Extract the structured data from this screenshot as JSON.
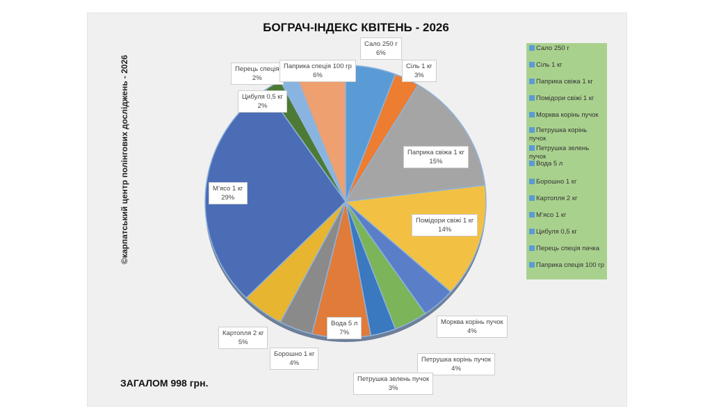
{
  "chart_data": {
    "type": "pie",
    "title": "БОГРАЧ-ІНДЕКС КВІТЕНЬ - 2026",
    "side_note": "©карпатський центр полінгових досліджень - 2026",
    "total_label": "ЗАГАЛОМ 998 грн.",
    "legend_position": "right",
    "slices": [
      {
        "label": "Сало 250 г",
        "value": 6,
        "pct": "6%",
        "color": "#5b9bd5"
      },
      {
        "label": "Сіль 1 кг",
        "value": 3,
        "pct": "3%",
        "color": "#ed7d31"
      },
      {
        "label": "Паприка свіжа 1 кг",
        "value": 15,
        "pct": "15%",
        "color": "#a5a5a5"
      },
      {
        "label": "Помідори свіжі 1 кг",
        "value": 14,
        "pct": "14%",
        "color": "#f2c144"
      },
      {
        "label": "Морква корінь пучок",
        "value": 4,
        "pct": "4%",
        "color": "#5a7fc8"
      },
      {
        "label": "Петрушка корінь пучок",
        "value": 4,
        "pct": "4%",
        "color": "#7cb45a"
      },
      {
        "label": "Петрушка зелень пучок",
        "value": 3,
        "pct": "3%",
        "color": "#3a78c0"
      },
      {
        "label": "Вода 5 л",
        "value": 7,
        "pct": "7%",
        "color": "#e07b39"
      },
      {
        "label": "Борошно 1 кг",
        "value": 4,
        "pct": "4%",
        "color": "#8a8a8a"
      },
      {
        "label": "Картопля 2 кг",
        "value": 5,
        "pct": "5%",
        "color": "#e8b530"
      },
      {
        "label": "М’ясо 1 кг",
        "value": 29,
        "pct": "29%",
        "color": "#4a6db5"
      },
      {
        "label": "Цибуля 0,5 кг",
        "value": 2,
        "pct": "2%",
        "color": "#4d7a35"
      },
      {
        "label": "Перець спеція пачка",
        "value": 2,
        "pct": "2%",
        "color": "#8ab4e0"
      },
      {
        "label": "Паприка спеція 100 гр",
        "value": 6,
        "pct": "6%",
        "color": "#eea070"
      }
    ],
    "slice_labels": [
      "Сало 250 г",
      "Сіль 1 кг",
      "Паприка свіжа 1 кг",
      "Помідори свіжі 1 кг",
      "Морква корінь пучок",
      "Петрушка корінь пучок",
      "Петрушка зелень пучок",
      "Вода 5 л",
      "Борошно 1 кг",
      "Картопля 2 кг",
      "М’ясо 1 кг",
      "Цибуля 0,5 кг",
      "Перець спеція",
      "Паприка спеція 100 гр"
    ]
  }
}
